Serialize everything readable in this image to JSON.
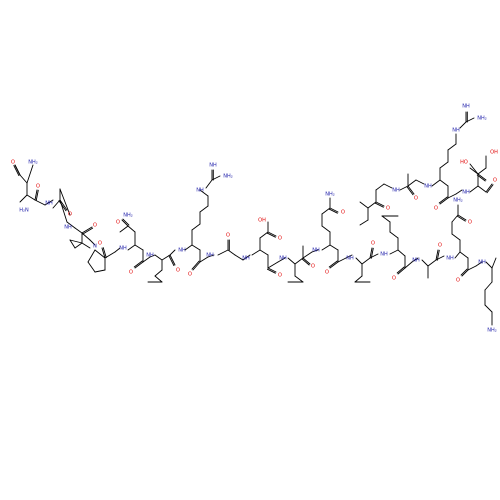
{
  "colors": {
    "background": "#ffffff",
    "bond": "#000000",
    "oxygen": "#e00000",
    "nitrogen": "#1a1aa8"
  },
  "labels": {
    "oxygen": "O",
    "nitrogen": "N",
    "amine_nh": "NH",
    "amine_h2n": "H₂N",
    "amine_nh2": "NH₂",
    "carboxyl_ho": "HO",
    "carboxyl_oh": "OH"
  }
}
